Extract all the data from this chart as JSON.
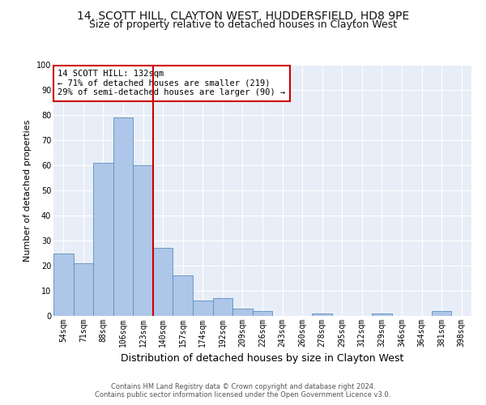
{
  "title1": "14, SCOTT HILL, CLAYTON WEST, HUDDERSFIELD, HD8 9PE",
  "title2": "Size of property relative to detached houses in Clayton West",
  "xlabel": "Distribution of detached houses by size in Clayton West",
  "ylabel": "Number of detached properties",
  "categories": [
    "54sqm",
    "71sqm",
    "88sqm",
    "106sqm",
    "123sqm",
    "140sqm",
    "157sqm",
    "174sqm",
    "192sqm",
    "209sqm",
    "226sqm",
    "243sqm",
    "260sqm",
    "278sqm",
    "295sqm",
    "312sqm",
    "329sqm",
    "346sqm",
    "364sqm",
    "381sqm",
    "398sqm"
  ],
  "values": [
    25,
    21,
    61,
    79,
    60,
    27,
    16,
    6,
    7,
    3,
    2,
    0,
    0,
    1,
    0,
    0,
    1,
    0,
    0,
    2,
    0
  ],
  "bar_color": "#aec6e8",
  "bar_edge_color": "#5a8fc0",
  "vline_index": 4.5,
  "vline_color": "#cc0000",
  "annotation_text": "14 SCOTT HILL: 132sqm\n← 71% of detached houses are smaller (219)\n29% of semi-detached houses are larger (90) →",
  "annotation_box_color": "#ffffff",
  "annotation_box_edge": "#cc0000",
  "ylim": [
    0,
    100
  ],
  "yticks": [
    0,
    10,
    20,
    30,
    40,
    50,
    60,
    70,
    80,
    90,
    100
  ],
  "background_color": "#e8eef7",
  "footer1": "Contains HM Land Registry data © Crown copyright and database right 2024.",
  "footer2": "Contains public sector information licensed under the Open Government Licence v3.0.",
  "title1_fontsize": 10,
  "title2_fontsize": 9,
  "ylabel_fontsize": 8,
  "xlabel_fontsize": 9,
  "tick_fontsize": 7,
  "footer_fontsize": 6,
  "annot_fontsize": 7.5
}
